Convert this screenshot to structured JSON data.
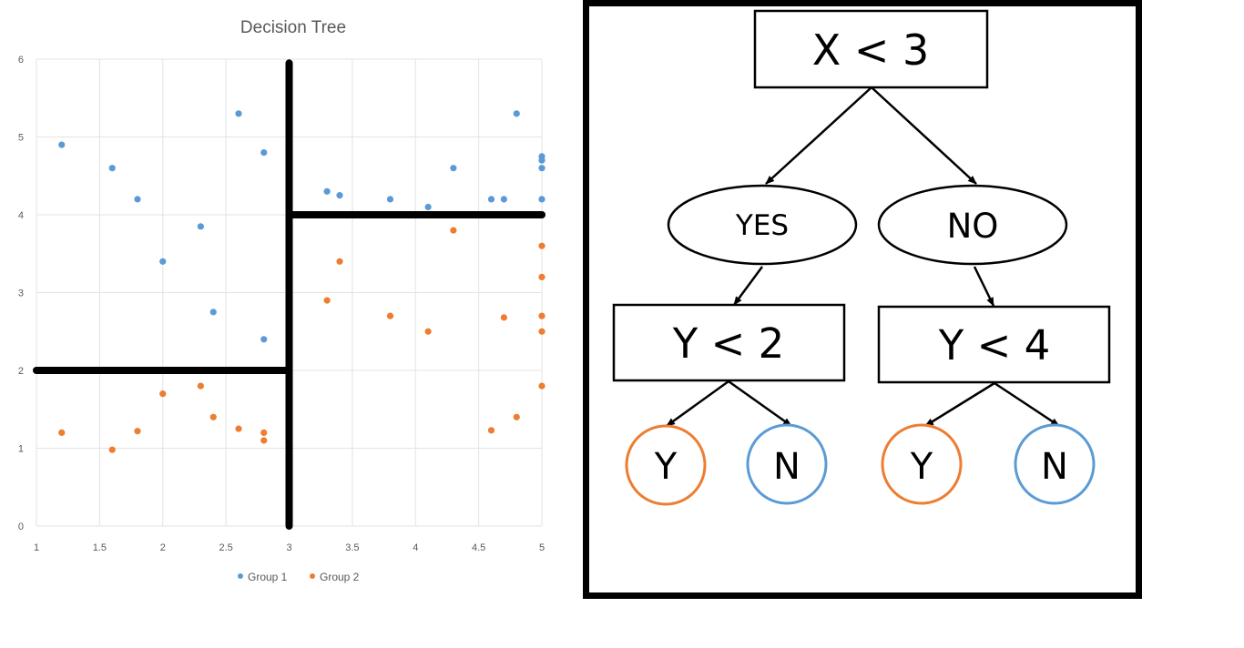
{
  "chart_data": {
    "type": "scatter",
    "title": "Decision Tree",
    "xlim": [
      1,
      5
    ],
    "ylim": [
      0,
      6
    ],
    "x_ticks": [
      "1",
      "1.5",
      "2",
      "2.5",
      "3",
      "3.5",
      "4",
      "4.5",
      "5"
    ],
    "y_ticks": [
      "0",
      "1",
      "2",
      "3",
      "4",
      "5",
      "6"
    ],
    "grid": true,
    "legend_position": "bottom",
    "series": [
      {
        "name": "Group 1",
        "color": "#5B9BD5",
        "points": [
          [
            1.2,
            4.9
          ],
          [
            1.6,
            4.6
          ],
          [
            1.8,
            4.2
          ],
          [
            2.0,
            3.4
          ],
          [
            2.3,
            3.85
          ],
          [
            2.4,
            2.75
          ],
          [
            2.6,
            5.3
          ],
          [
            2.8,
            4.8
          ],
          [
            2.8,
            2.4
          ],
          [
            3.3,
            4.3
          ],
          [
            3.4,
            4.25
          ],
          [
            3.8,
            4.2
          ],
          [
            4.1,
            4.1
          ],
          [
            4.3,
            4.6
          ],
          [
            4.6,
            4.2
          ],
          [
            4.7,
            4.2
          ],
          [
            4.8,
            5.3
          ],
          [
            5.0,
            4.75
          ],
          [
            5.0,
            4.7
          ],
          [
            5.0,
            4.6
          ],
          [
            5.0,
            4.2
          ]
        ]
      },
      {
        "name": "Group 2",
        "color": "#ED7D31",
        "points": [
          [
            1.2,
            1.2
          ],
          [
            1.6,
            0.98
          ],
          [
            1.8,
            1.22
          ],
          [
            2.0,
            1.7
          ],
          [
            2.3,
            1.8
          ],
          [
            2.4,
            1.4
          ],
          [
            2.6,
            1.25
          ],
          [
            2.8,
            1.2
          ],
          [
            2.8,
            1.1
          ],
          [
            3.3,
            2.9
          ],
          [
            3.4,
            3.4
          ],
          [
            3.8,
            2.7
          ],
          [
            4.1,
            2.5
          ],
          [
            4.3,
            3.8
          ],
          [
            4.6,
            1.23
          ],
          [
            4.7,
            2.68
          ],
          [
            4.8,
            1.4
          ],
          [
            5.0,
            3.6
          ],
          [
            5.0,
            3.2
          ],
          [
            5.0,
            2.7
          ],
          [
            5.0,
            2.5
          ],
          [
            5.0,
            1.8
          ]
        ]
      }
    ],
    "split_lines": [
      {
        "from": [
          3,
          0
        ],
        "to": [
          3,
          5.95
        ]
      },
      {
        "from": [
          1,
          2
        ],
        "to": [
          3,
          2
        ]
      },
      {
        "from": [
          3,
          4
        ],
        "to": [
          5,
          4
        ]
      }
    ]
  },
  "tree": {
    "root": "X < 3",
    "yes": "YES",
    "no": "NO",
    "left_split": "Y < 2",
    "right_split": "Y < 4",
    "leaves": [
      "Y",
      "N",
      "Y",
      "N"
    ],
    "leaf_colors": [
      "#ED7D31",
      "#5B9BD5",
      "#ED7D31",
      "#5B9BD5"
    ]
  }
}
